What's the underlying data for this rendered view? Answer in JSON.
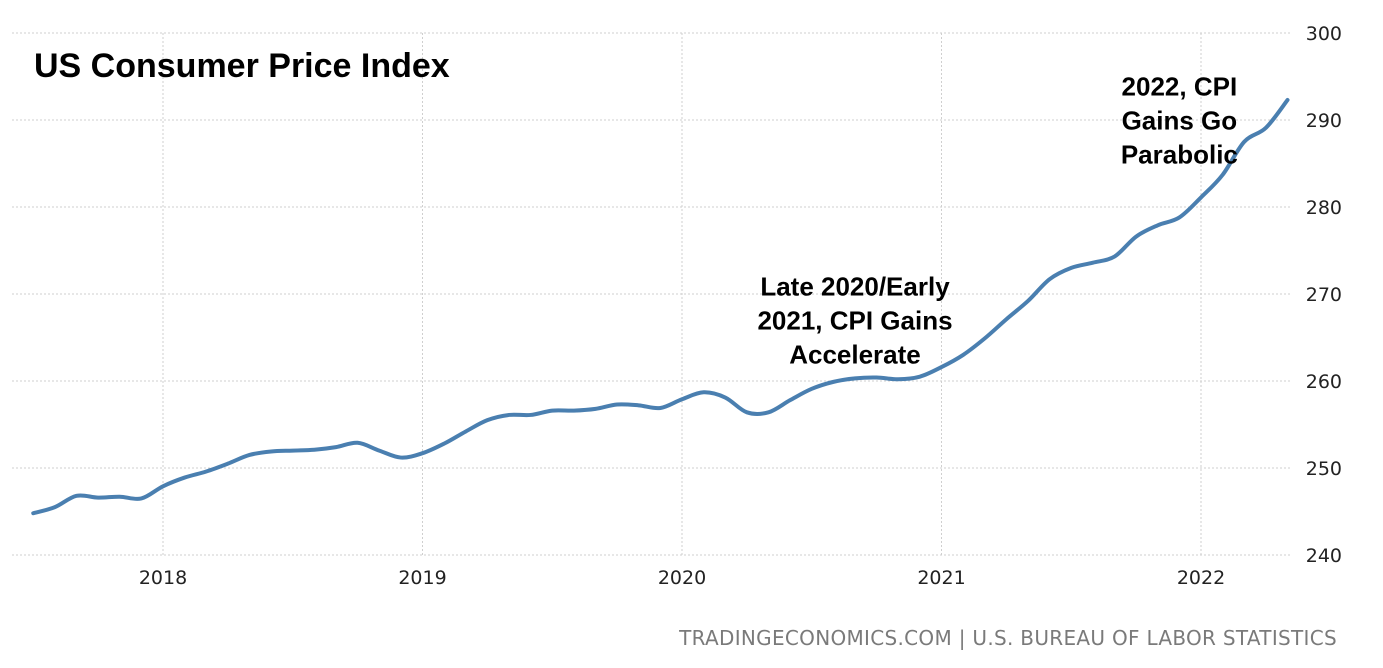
{
  "chart_data": {
    "type": "line",
    "title": "US Consumer Price Index",
    "source": "TRADINGECONOMICS.COM | U.S. BUREAU OF LABOR STATISTICS",
    "xlabel": "",
    "ylabel": "",
    "x_ticks": [
      "2018",
      "2019",
      "2020",
      "2021",
      "2022"
    ],
    "y_ticks": [
      240,
      250,
      260,
      270,
      280,
      290,
      300
    ],
    "ylim": [
      240,
      300
    ],
    "xlim": [
      "2017-07",
      "2022-05"
    ],
    "grid": true,
    "y_axis_position": "right",
    "colors": {
      "line": "#4a7fb0",
      "grid": "#cfcfcf",
      "source": "#7a7a7a"
    },
    "series": [
      {
        "x": [
          "2017-07",
          "2017-08",
          "2017-09",
          "2017-10",
          "2017-11",
          "2017-12",
          "2018-01",
          "2018-02",
          "2018-03",
          "2018-04",
          "2018-05",
          "2018-06",
          "2018-07",
          "2018-08",
          "2018-09",
          "2018-10",
          "2018-11",
          "2018-12",
          "2019-01",
          "2019-02",
          "2019-03",
          "2019-04",
          "2019-05",
          "2019-06",
          "2019-07",
          "2019-08",
          "2019-09",
          "2019-10",
          "2019-11",
          "2019-12",
          "2020-01",
          "2020-02",
          "2020-03",
          "2020-04",
          "2020-05",
          "2020-06",
          "2020-07",
          "2020-08",
          "2020-09",
          "2020-10",
          "2020-11",
          "2020-12",
          "2021-01",
          "2021-02",
          "2021-03",
          "2021-04",
          "2021-05",
          "2021-06",
          "2021-07",
          "2021-08",
          "2021-09",
          "2021-10",
          "2021-11",
          "2021-12",
          "2022-01",
          "2022-02",
          "2022-03",
          "2022-04",
          "2022-05"
        ],
        "values": [
          244.8,
          245.5,
          246.8,
          246.6,
          246.7,
          246.5,
          247.9,
          248.9,
          249.6,
          250.5,
          251.5,
          251.9,
          252.0,
          252.1,
          252.4,
          252.9,
          252.0,
          251.2,
          251.7,
          252.8,
          254.2,
          255.5,
          256.1,
          256.1,
          256.6,
          256.6,
          256.8,
          257.3,
          257.2,
          256.9,
          257.9,
          258.7,
          258.1,
          256.4,
          256.4,
          257.8,
          259.1,
          259.9,
          260.3,
          260.4,
          260.2,
          260.5,
          261.6,
          263.0,
          264.9,
          267.1,
          269.2,
          271.7,
          273.0,
          273.6,
          274.3,
          276.6,
          277.9,
          278.8,
          281.1,
          283.7,
          287.5,
          289.1,
          292.3
        ]
      }
    ],
    "annotations": [
      {
        "x": "2020-09",
        "y": 262,
        "lines": [
          "Late 2020/Early",
          "2021, CPI Gains",
          "Accelerate"
        ]
      },
      {
        "x": "2021-12",
        "y": 285,
        "lines": [
          "2022, CPI",
          "Gains Go",
          "Parabolic"
        ]
      }
    ]
  }
}
